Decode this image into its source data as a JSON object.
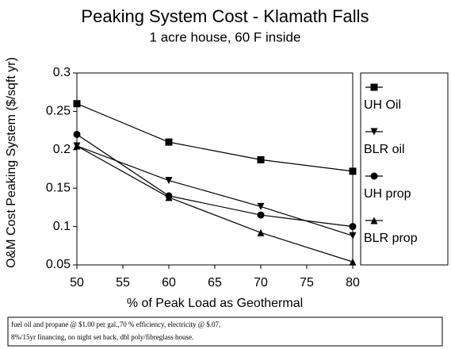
{
  "chart_data": {
    "type": "line",
    "title": "Peaking System Cost - Klamath Falls",
    "subtitle": "1 acre house, 60 F inside",
    "x_label": "% of Peak Load as Geothermal",
    "y_label": "O&M Cost Peaking System ($/sqft yr)",
    "x": [
      50,
      60,
      70,
      80
    ],
    "series": [
      {
        "name": "UH Oil",
        "color": "#000000",
        "marker": "square",
        "values": [
          0.26,
          0.21,
          0.187,
          0.172
        ]
      },
      {
        "name": "BLR oil",
        "color": "#000000",
        "marker": "triangle-down",
        "values": [
          0.205,
          0.16,
          0.126,
          0.088
        ]
      },
      {
        "name": "UH prop",
        "color": "#000000",
        "marker": "circle",
        "values": [
          0.22,
          0.14,
          0.115,
          0.1
        ]
      },
      {
        "name": "BLR prop",
        "color": "#000000",
        "marker": "triangle-up",
        "values": [
          0.205,
          0.138,
          0.092,
          0.054
        ]
      }
    ],
    "xlim": [
      50,
      80
    ],
    "xticks": [
      50,
      55,
      60,
      65,
      70,
      75,
      80
    ],
    "ylim": [
      0.05,
      0.3
    ],
    "yticks": [
      0.05,
      0.1,
      0.15,
      0.2,
      0.25,
      0.3
    ],
    "grid": false,
    "legend": "right",
    "notes": [
      "fuel oil and propane @ $1.00 per gal.,70 % efficiency, electricity @ $.07,",
      "8%/15yr financing, no night set back, dbl poly/fibreglass house."
    ]
  }
}
